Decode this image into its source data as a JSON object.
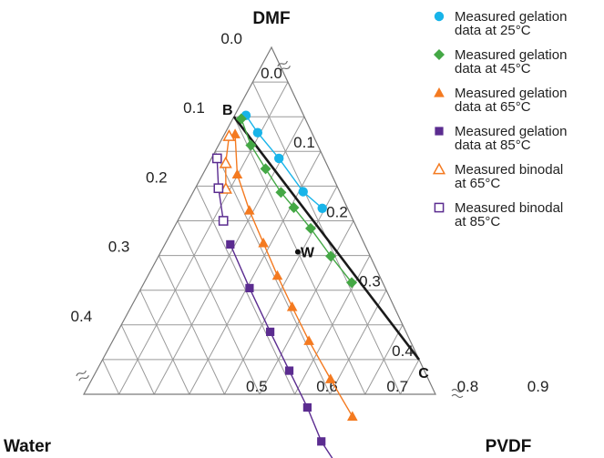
{
  "chart_data": {
    "type": "ternary",
    "vertex_labels": {
      "top": "DMF",
      "left": "Water",
      "right": "PVDF"
    },
    "axes": {
      "water_fraction": {
        "range": [
          0.0,
          0.5
        ],
        "ticks": [
          "0.0",
          "0.1",
          "0.2",
          "0.3",
          "0.4"
        ]
      },
      "dmf_fraction": {
        "range": [
          0.5,
          1.0
        ],
        "ticks": [
          "0.9",
          "0.8",
          "0.7",
          "0.6",
          "0.5"
        ]
      },
      "pvdf_fraction": {
        "range": [
          0.0,
          0.5
        ],
        "ticks": [
          "0.0",
          "0.1",
          "0.2",
          "0.3",
          "0.4"
        ]
      }
    },
    "grid": true,
    "legend_position": "top-right",
    "series": [
      {
        "name": "Measured gelation data at 25°C",
        "color": "#18b4e9",
        "marker": "circle-filled",
        "points": [
          {
            "pvdf": 0.016,
            "water": 0.082
          },
          {
            "pvdf": 0.046,
            "water": 0.077
          },
          {
            "pvdf": 0.096,
            "water": 0.064
          },
          {
            "pvdf": 0.156,
            "water": 0.052
          },
          {
            "pvdf": 0.196,
            "water": 0.036
          }
        ]
      },
      {
        "name": "Measured gelation data at 45°C",
        "color": "#44a845",
        "marker": "diamond-filled",
        "points": [
          {
            "pvdf": 0.012,
            "water": 0.091
          },
          {
            "pvdf": 0.046,
            "water": 0.095
          },
          {
            "pvdf": 0.085,
            "water": 0.09
          },
          {
            "pvdf": 0.125,
            "water": 0.084
          },
          {
            "pvdf": 0.155,
            "water": 0.076
          },
          {
            "pvdf": 0.195,
            "water": 0.066
          },
          {
            "pvdf": 0.245,
            "water": 0.056
          },
          {
            "pvdf": 0.295,
            "water": 0.044
          }
        ]
      },
      {
        "name": "Measured gelation data at 65°C",
        "color": "#f47a20",
        "marker": "triangle-filled",
        "points": [
          {
            "pvdf": 0.015,
            "water": 0.11
          },
          {
            "pvdf": 0.049,
            "water": 0.134
          },
          {
            "pvdf": 0.094,
            "water": 0.141
          },
          {
            "pvdf": 0.139,
            "water": 0.143
          },
          {
            "pvdf": 0.184,
            "water": 0.145
          },
          {
            "pvdf": 0.229,
            "water": 0.145
          },
          {
            "pvdf": 0.279,
            "water": 0.144
          },
          {
            "pvdf": 0.339,
            "water": 0.139
          },
          {
            "pvdf": 0.399,
            "water": 0.133
          }
        ]
      },
      {
        "name": "Measured gelation data at 85°C",
        "color": "#5b2c90",
        "marker": "square-filled",
        "points": [
          {
            "pvdf": 0.093,
            "water": 0.191
          },
          {
            "pvdf": 0.154,
            "water": 0.193
          },
          {
            "pvdf": 0.217,
            "water": 0.193
          },
          {
            "pvdf": 0.274,
            "water": 0.192
          },
          {
            "pvdf": 0.328,
            "water": 0.191
          },
          {
            "pvdf": 0.374,
            "water": 0.194
          },
          {
            "pvdf": 0.433,
            "water": 0.185
          }
        ]
      },
      {
        "name": "Measured binodal at 65°C",
        "color": "#f47a20",
        "marker": "triangle-open",
        "points": [
          {
            "pvdf": 0.008,
            "water": 0.12
          },
          {
            "pvdf": 0.024,
            "water": 0.143
          },
          {
            "pvdf": 0.044,
            "water": 0.16
          }
        ]
      },
      {
        "name": "Measured binodal at 85°C",
        "color": "#5b2c90",
        "marker": "square-open",
        "points": [
          {
            "pvdf": 0.008,
            "water": 0.152
          },
          {
            "pvdf": 0.033,
            "water": 0.17
          },
          {
            "pvdf": 0.065,
            "water": 0.185
          }
        ]
      }
    ],
    "tie_line": {
      "from": {
        "pvdf": 0.0,
        "water": 0.1
      },
      "to": {
        "pvdf": 0.45,
        "water": 0.0
      },
      "color": "#1a1a1a"
    },
    "annotations": [
      {
        "label": "B",
        "pvdf": 0.0,
        "water": 0.1
      },
      {
        "label": "C",
        "pvdf": 0.45,
        "water": 0.0
      },
      {
        "label": "W",
        "pvdf": 0.1948,
        "water": 0.1
      }
    ]
  }
}
